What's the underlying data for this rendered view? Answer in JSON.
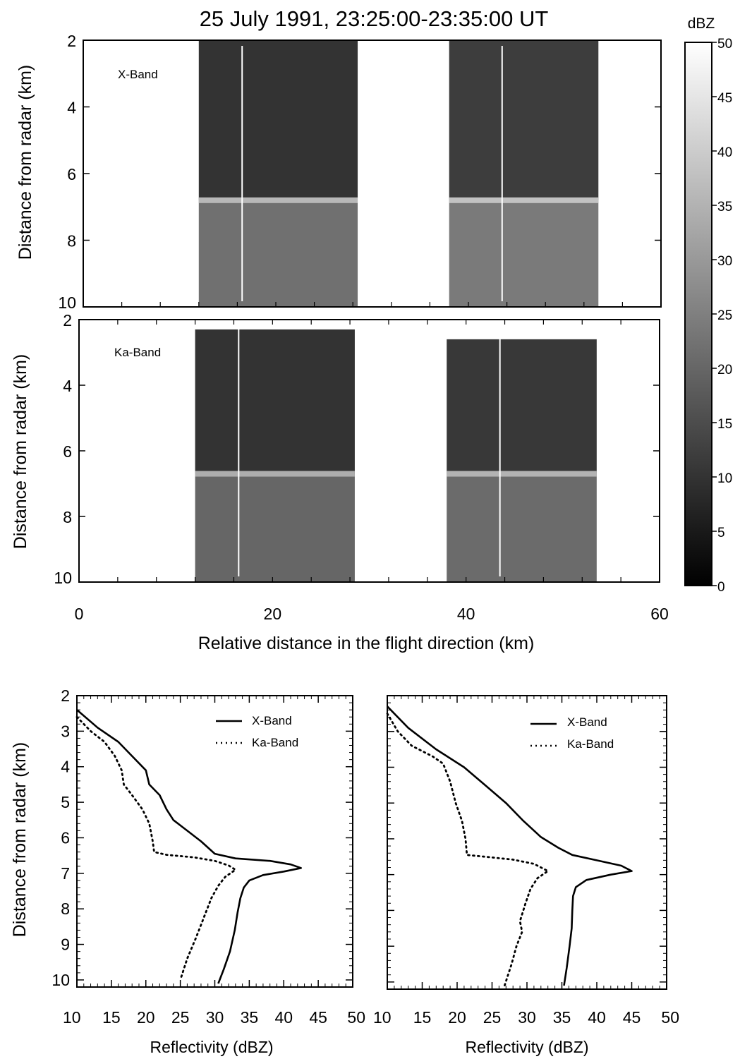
{
  "title": "25 July 1991, 23:25:00-23:35:00 UT",
  "chart_data": [
    {
      "type": "heatmap",
      "panel": "X-Band radar cross-section",
      "band_label": "X-Band",
      "ylabel": "Distance from radar (km)",
      "yticks": [
        "2",
        "4",
        "6",
        "8",
        "10"
      ],
      "ylim": [
        2,
        10
      ],
      "xlim": [
        0,
        60
      ],
      "melting_layer_km": 6.8,
      "flight_marker_x_km": [
        16.5,
        43.5
      ],
      "echo_regions": [
        {
          "x_start_km": 12.0,
          "x_end_km": 28.5,
          "top_km": 2.0,
          "base_km": 10.0,
          "above_melting_dbz": 10,
          "below_melting_dbz": 22
        },
        {
          "x_start_km": 38.0,
          "x_end_km": 53.5,
          "top_km": 2.0,
          "base_km": 10.0,
          "above_melting_dbz": 12,
          "below_melting_dbz": 24
        }
      ]
    },
    {
      "type": "heatmap",
      "panel": "Ka-Band radar cross-section",
      "band_label": "Ka-Band",
      "ylabel": "Distance from radar (km)",
      "yticks": [
        "2",
        "4",
        "6",
        "8",
        "10"
      ],
      "ylim": [
        2,
        10
      ],
      "xlim": [
        0,
        60
      ],
      "xlabel": "Relative distance in the flight direction (km)",
      "xticks": [
        "0",
        "20",
        "40",
        "60"
      ],
      "melting_layer_km": 6.7,
      "flight_marker_x_km": [
        16.5,
        43.5
      ],
      "echo_regions": [
        {
          "x_start_km": 12.0,
          "x_end_km": 28.5,
          "top_km": 2.3,
          "base_km": 10.0,
          "above_melting_dbz": 10,
          "below_melting_dbz": 20
        },
        {
          "x_start_km": 38.0,
          "x_end_km": 53.5,
          "top_km": 2.6,
          "base_km": 10.0,
          "above_melting_dbz": 11,
          "below_melting_dbz": 21
        }
      ]
    },
    {
      "type": "colorbar",
      "label": "dBZ",
      "range": [
        0,
        50
      ],
      "ticks": [
        "0",
        "5",
        "10",
        "15",
        "20",
        "25",
        "30",
        "35",
        "40",
        "45",
        "50"
      ]
    },
    {
      "type": "line",
      "panel": "left profile",
      "xlabel": "Reflectivity (dBZ)",
      "ylabel": "Distance from radar (km)",
      "xlim": [
        10,
        50
      ],
      "ylim": [
        2,
        10.2
      ],
      "xticks": [
        "10",
        "15",
        "20",
        "25",
        "30",
        "35",
        "40",
        "45",
        "50"
      ],
      "yticks": [
        "2",
        "3",
        "4",
        "5",
        "6",
        "7",
        "8",
        "9",
        "10"
      ],
      "series": [
        {
          "name": "X-Band",
          "style": "solid",
          "points": [
            [
              10,
              2.4
            ],
            [
              13,
              2.9
            ],
            [
              16,
              3.3
            ],
            [
              18,
              3.7
            ],
            [
              20,
              4.1
            ],
            [
              20.5,
              4.5
            ],
            [
              22,
              4.8
            ],
            [
              23,
              5.2
            ],
            [
              24,
              5.5
            ],
            [
              26,
              5.8
            ],
            [
              28,
              6.1
            ],
            [
              30,
              6.45
            ],
            [
              33,
              6.58
            ],
            [
              38,
              6.65
            ],
            [
              41,
              6.75
            ],
            [
              42.5,
              6.85
            ],
            [
              40,
              6.95
            ],
            [
              37,
              7.05
            ],
            [
              35,
              7.2
            ],
            [
              34.2,
              7.4
            ],
            [
              33.7,
              7.7
            ],
            [
              33.3,
              8.1
            ],
            [
              32.9,
              8.6
            ],
            [
              32.2,
              9.2
            ],
            [
              31.3,
              9.7
            ],
            [
              30.5,
              10.1
            ]
          ]
        },
        {
          "name": "Ka-Band",
          "style": "dotted",
          "points": [
            [
              10,
              2.6
            ],
            [
              12,
              3.0
            ],
            [
              14,
              3.3
            ],
            [
              15.5,
              3.7
            ],
            [
              16.5,
              4.1
            ],
            [
              16.8,
              4.5
            ],
            [
              18,
              4.8
            ],
            [
              19.5,
              5.2
            ],
            [
              20.5,
              5.6
            ],
            [
              21,
              6.1
            ],
            [
              21.2,
              6.4
            ],
            [
              23,
              6.48
            ],
            [
              27,
              6.55
            ],
            [
              30,
              6.65
            ],
            [
              32,
              6.78
            ],
            [
              33,
              6.9
            ],
            [
              31.5,
              7.1
            ],
            [
              30.5,
              7.35
            ],
            [
              29.5,
              7.7
            ],
            [
              28.5,
              8.2
            ],
            [
              27.3,
              8.8
            ],
            [
              26,
              9.4
            ],
            [
              25,
              10.0
            ]
          ]
        }
      ]
    },
    {
      "type": "line",
      "panel": "right profile",
      "xlabel": "Reflectivity (dBZ)",
      "xlim": [
        10,
        50
      ],
      "ylim": [
        2,
        10.2
      ],
      "xticks": [
        "10",
        "15",
        "20",
        "25",
        "30",
        "35",
        "40",
        "45",
        "50"
      ],
      "series": [
        {
          "name": "X-Band",
          "style": "solid",
          "points": [
            [
              10,
              2.3
            ],
            [
              13,
              2.9
            ],
            [
              17,
              3.5
            ],
            [
              21,
              4.0
            ],
            [
              24,
              4.5
            ],
            [
              27,
              5.0
            ],
            [
              29.5,
              5.5
            ],
            [
              32,
              5.95
            ],
            [
              34.5,
              6.25
            ],
            [
              36.5,
              6.45
            ],
            [
              40,
              6.6
            ],
            [
              43.5,
              6.75
            ],
            [
              45,
              6.9
            ],
            [
              42,
              7.0
            ],
            [
              38.5,
              7.15
            ],
            [
              37,
              7.35
            ],
            [
              36.6,
              7.6
            ],
            [
              36.5,
              8.0
            ],
            [
              36.4,
              8.5
            ],
            [
              36.1,
              9.0
            ],
            [
              35.7,
              9.6
            ],
            [
              35.3,
              10.1
            ]
          ]
        },
        {
          "name": "Ka-Band",
          "style": "dotted",
          "points": [
            [
              10,
              2.5
            ],
            [
              11.5,
              3.0
            ],
            [
              13.5,
              3.4
            ],
            [
              16.5,
              3.7
            ],
            [
              18,
              3.9
            ],
            [
              19,
              4.4
            ],
            [
              19.8,
              5.0
            ],
            [
              20.7,
              5.5
            ],
            [
              21.2,
              6.0
            ],
            [
              21.4,
              6.45
            ],
            [
              24,
              6.5
            ],
            [
              28,
              6.58
            ],
            [
              31,
              6.7
            ],
            [
              33,
              6.9
            ],
            [
              31.5,
              7.1
            ],
            [
              30.5,
              7.4
            ],
            [
              29.8,
              7.8
            ],
            [
              29,
              8.3
            ],
            [
              29.3,
              8.6
            ],
            [
              28.5,
              9.0
            ],
            [
              27.8,
              9.5
            ],
            [
              26.8,
              10.1
            ]
          ]
        }
      ]
    }
  ]
}
